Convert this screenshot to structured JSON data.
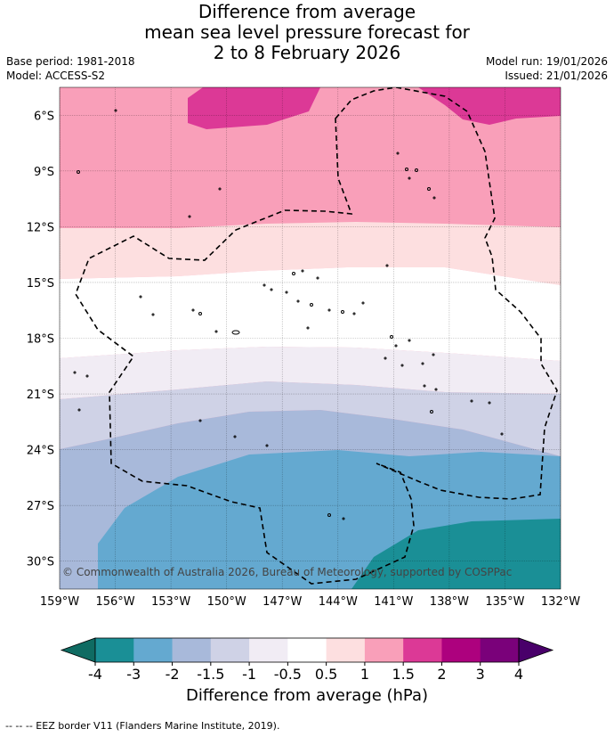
{
  "title": {
    "line1": "Difference from average",
    "line2": "mean sea level pressure forecast for",
    "line3": "2 to 8 February 2026"
  },
  "meta": {
    "base_period": "Base period: 1981-2018",
    "model": "Model: ACCESS-S2",
    "model_run": "Model run: 19/01/2026",
    "issued": "Issued: 21/01/2026"
  },
  "map": {
    "lon_labels": [
      "159°W",
      "156°W",
      "153°W",
      "150°W",
      "147°W",
      "144°W",
      "141°W",
      "138°W",
      "135°W",
      "132°W"
    ],
    "lat_labels": [
      "6°S",
      "9°S",
      "12°S",
      "15°S",
      "18°S",
      "21°S",
      "24°S",
      "27°S",
      "30°S"
    ],
    "lon_range": [
      -159,
      -132
    ],
    "lat_range": [
      -31.5,
      -4.5
    ],
    "copyright": "© Commonwealth of Australia 2026, Bureau of Meteorology, supported by COSPPac"
  },
  "colorbar": {
    "ticks": [
      "-4",
      "-3",
      "-2",
      "-1.5",
      "-1",
      "-0.5",
      "0.5",
      "1",
      "1.5",
      "2",
      "3",
      "4"
    ],
    "colors": [
      "#1a8f96",
      "#64a9d0",
      "#a8b9da",
      "#cfd2e6",
      "#f1ecf4",
      "#ffffff",
      "#fddfe0",
      "#f99fb9",
      "#dc3996",
      "#ad017e",
      "#7a017a"
    ],
    "under_color": "#0f6b62",
    "over_color": "#49006a",
    "title": "Difference from average (hPa)"
  },
  "footer": {
    "text": "-- -- -- EEZ border V11 (Flanders Marine Institute, 2019)."
  }
}
